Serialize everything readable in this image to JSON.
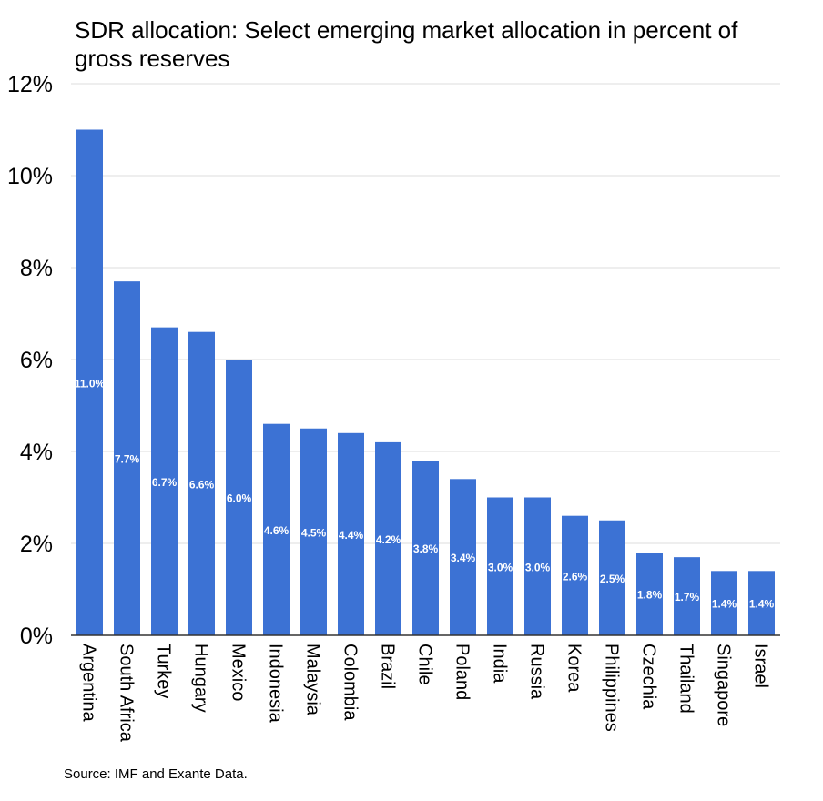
{
  "chart_data": {
    "type": "bar",
    "title": "SDR allocation: Select emerging market allocation in percent of gross reserves",
    "source": "Source: IMF and Exante Data.",
    "categories": [
      "Argentina",
      "South Africa",
      "Turkey",
      "Hungary",
      "Mexico",
      "Indonesia",
      "Malaysia",
      "Colombia",
      "Brazil",
      "Chile",
      "Poland",
      "India",
      "Russia",
      "Korea",
      "Philippines",
      "Czechia",
      "Thailand",
      "Singapore",
      "Israel"
    ],
    "values": [
      11.0,
      7.7,
      6.7,
      6.6,
      6.0,
      4.6,
      4.5,
      4.4,
      4.2,
      3.8,
      3.4,
      3.0,
      3.0,
      2.6,
      2.5,
      1.8,
      1.7,
      1.4,
      1.4
    ],
    "data_labels": [
      "11.0%",
      "7.7%",
      "6.7%",
      "6.6%",
      "6.0%",
      "4.6%",
      "4.5%",
      "4.4%",
      "4.2%",
      "3.8%",
      "3.4%",
      "3.0%",
      "3.0%",
      "2.6%",
      "2.5%",
      "1.8%",
      "1.7%",
      "1.4%",
      "1.4%"
    ],
    "yticks": [
      "0%",
      "2%",
      "4%",
      "6%",
      "8%",
      "10%",
      "12%"
    ],
    "ylim": [
      0,
      12
    ],
    "xlabel": "",
    "ylabel": "",
    "grid": true,
    "bar_color": "#3c72d4"
  }
}
